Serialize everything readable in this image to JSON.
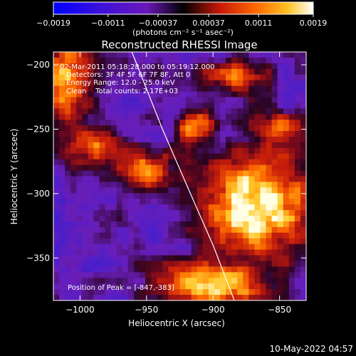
{
  "chart_data": {
    "type": "heatmap",
    "title": "Reconstructed RHESSI Image",
    "xlabel": "Heliocentric X (arcsec)",
    "ylabel": "Heliocentric Y (arcsec)",
    "xlim": [
      -1020,
      -830
    ],
    "ylim": [
      -383,
      -190
    ],
    "x_ticks": [
      -1000,
      -950,
      -900,
      -850
    ],
    "x_tick_labels": [
      "−1000",
      "−950",
      "−900",
      "−850"
    ],
    "y_ticks": [
      -200,
      -250,
      -300,
      -350
    ],
    "y_tick_labels": [
      "−200",
      "−250",
      "−300",
      "−350"
    ],
    "colorbar": {
      "range": [
        -0.0019,
        0.0019
      ],
      "tick_values": [
        -0.0019,
        -0.0011,
        -0.00037,
        0.00037,
        0.0011,
        0.0019
      ],
      "tick_labels": [
        "−0.0019",
        "−0.0011",
        "−0.00037",
        "0.00037",
        "0.0011",
        "0.0019"
      ],
      "units_label": "(photons cm⁻² s⁻¹ asec⁻²)",
      "colormap": "blue-purple-red-orange-yellow-white"
    },
    "annotations": {
      "time_range": "02-Mar-2011 05:18:28.000 to 05:19:12.000",
      "detectors": "Detectors: 3F 4F 5F 6F 7F 8F, Att 0",
      "energy": "Energy Range: 12.0 - 25.0 keV",
      "algorithm": "Clean    Total counts: 2.17E+03",
      "peak": "Position of Peak = [-847,-383]"
    },
    "limb_curve": {
      "color": "#ffffff",
      "points": [
        [
          -961,
          -190
        ],
        [
          -938,
          -250
        ],
        [
          -917,
          -300
        ],
        [
          -900,
          -340
        ],
        [
          -884,
          -383
        ]
      ]
    },
    "peak_position": [
      -847,
      -383
    ]
  },
  "footer_timestamp": "10-May-2022 04:57"
}
